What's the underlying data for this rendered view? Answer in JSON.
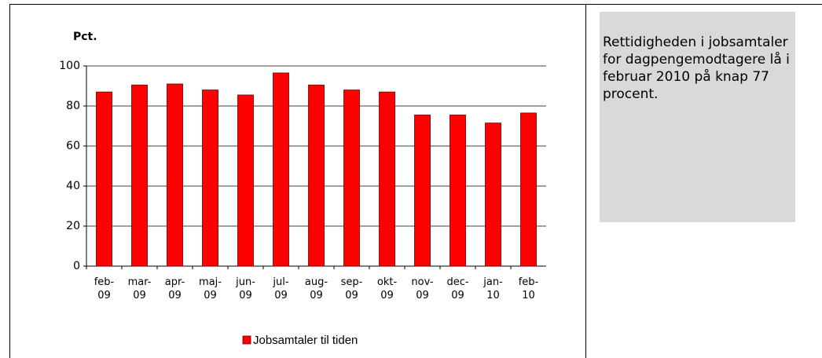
{
  "chart_data": {
    "type": "bar",
    "y_axis_label": "Pct.",
    "categories": [
      "feb-09",
      "mar-09",
      "apr-09",
      "maj-09",
      "jun-09",
      "jul-09",
      "aug-09",
      "sep-09",
      "okt-09",
      "nov-09",
      "dec-09",
      "jan-10",
      "feb-10"
    ],
    "series": [
      {
        "name": "Jobsamtaler til tiden",
        "color": "#ff0000",
        "values": [
          87,
          90.5,
          91,
          88,
          85.5,
          96.5,
          90.5,
          88,
          87,
          75.5,
          75.5,
          71.5,
          76.5
        ]
      }
    ],
    "ylim": [
      0,
      100
    ],
    "yticks": [
      0,
      20,
      40,
      60,
      80,
      100
    ],
    "grid": true,
    "legend": "bottom"
  },
  "side_note": {
    "text": "Rettidigheden i jobsamtaler for dagpengemodtagere lå i februar 2010 på knap 77 procent."
  }
}
